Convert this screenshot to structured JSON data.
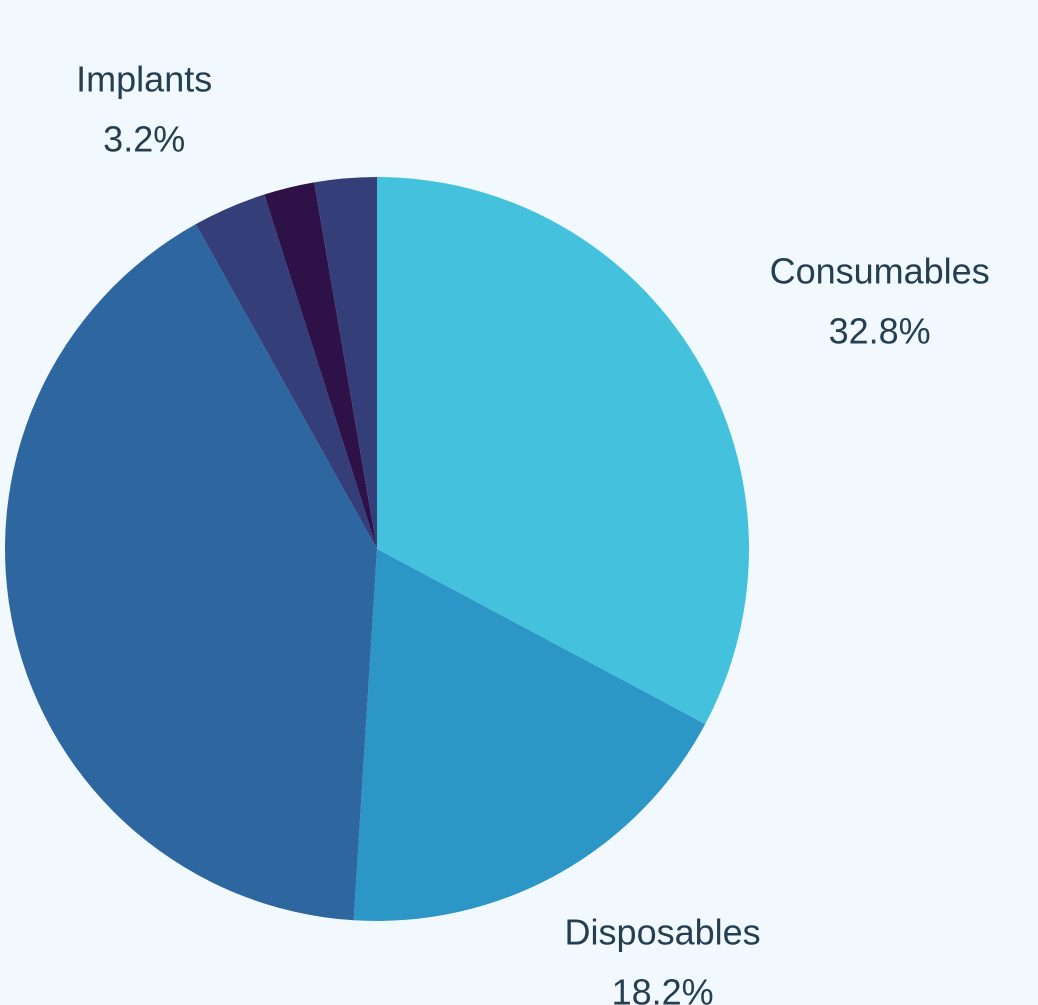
{
  "chart_data": {
    "type": "pie",
    "categories": [
      "Consumables",
      "Disposables",
      null,
      "Implants",
      null,
      null
    ],
    "values": [
      32.8,
      18.2,
      40.9,
      3.2,
      2.2,
      2.7
    ],
    "value_labels": [
      "32.8%",
      "18.2%",
      null,
      "3.2%",
      null,
      null
    ],
    "colors": [
      "#44c2dd",
      "#2c96c6",
      "#2e67a0",
      "#343f7a",
      "#2e1247",
      "#343f7a"
    ]
  }
}
